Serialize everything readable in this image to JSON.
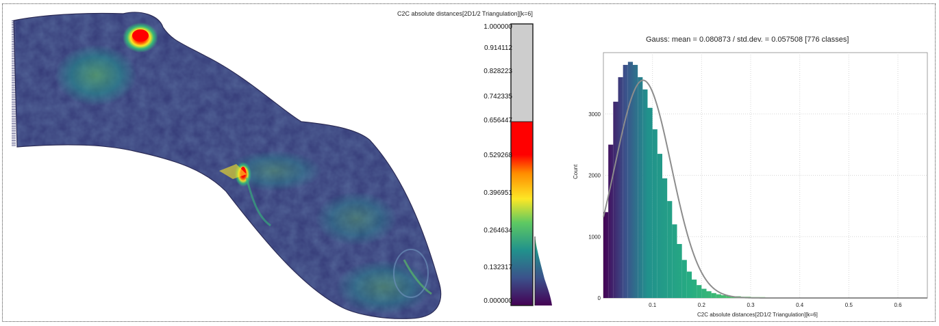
{
  "scalar_field": {
    "title": "C2C absolute distances[2D1/2 Triangulation][k=6]",
    "ticks": [
      "1.000000",
      "0.914112",
      "0.828223",
      "0.742335",
      "0.656447",
      "0.529268",
      "0.396951",
      "0.264634",
      "0.132317",
      "0.000000"
    ],
    "tick_values": [
      1.0,
      0.914112,
      0.828223,
      0.742335,
      0.656447,
      0.529268,
      0.396951,
      0.264634,
      0.132317,
      0.0
    ],
    "saturation_max": 0.656447,
    "colors": {
      "above_range": "#cdcdcd",
      "high": "#ff0000",
      "mid": "#fde725",
      "teal": "#21918c",
      "low": "#440154"
    }
  },
  "histogram": {
    "title": "Gauss: mean = 0.080873 / std.dev. = 0.057508 [776 classes]",
    "xlabel": "C2C absolute distances[2D1/2 Triangulation][k=6]",
    "ylabel": "Count",
    "xticks": [
      "0.1",
      "0.2",
      "0.3",
      "0.4",
      "0.5",
      "0.6"
    ],
    "yticks": [
      "0",
      "1000",
      "2000",
      "3000"
    ]
  },
  "chart_data": {
    "type": "bar",
    "title": "Gauss: mean = 0.080873 / std.dev. = 0.057508 [776 classes]",
    "xlabel": "C2C absolute distances[2D1/2 Triangulation][k=6]",
    "ylabel": "Count",
    "xlim": [
      0.0,
      0.66
    ],
    "ylim": [
      0,
      4000
    ],
    "bins": 776,
    "x": [
      0.0,
      0.01,
      0.02,
      0.03,
      0.04,
      0.05,
      0.06,
      0.07,
      0.08,
      0.09,
      0.1,
      0.11,
      0.12,
      0.13,
      0.14,
      0.15,
      0.16,
      0.17,
      0.18,
      0.19,
      0.2,
      0.21,
      0.22,
      0.23,
      0.24,
      0.25,
      0.26,
      0.28,
      0.3,
      0.33,
      0.36,
      0.4,
      0.45,
      0.5,
      0.55,
      0.6,
      0.65
    ],
    "values": [
      1400,
      2500,
      3200,
      3600,
      3800,
      3850,
      3800,
      3600,
      3400,
      3100,
      2750,
      2350,
      1950,
      1580,
      1200,
      880,
      620,
      430,
      300,
      210,
      150,
      110,
      80,
      60,
      45,
      35,
      28,
      20,
      14,
      9,
      6,
      4,
      2,
      1,
      1,
      0,
      0
    ],
    "series": [
      {
        "name": "Gauss",
        "mean": 0.080873,
        "std": 0.057508,
        "peak": 3550
      }
    ],
    "grid": true
  }
}
